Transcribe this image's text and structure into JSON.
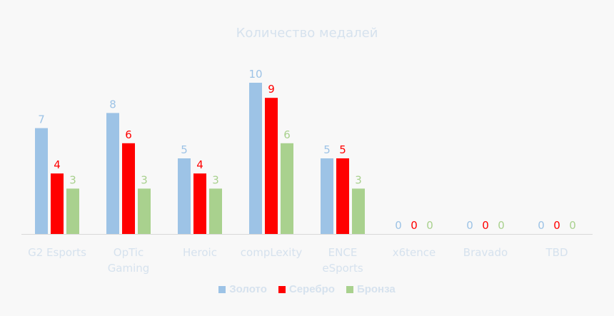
{
  "chart_data": {
    "type": "bar",
    "title": "Количество медалей",
    "categories": [
      "G2 Esports",
      "OpTic Gaming",
      "Heroic",
      "compLexity",
      "ENCE eSports",
      "x6tence",
      "Bravado",
      "TBD"
    ],
    "category_lines": [
      [
        "G2 Esports"
      ],
      [
        "OpTic",
        "Gaming"
      ],
      [
        "Heroic"
      ],
      [
        "compLexity"
      ],
      [
        "ENCE",
        "eSports"
      ],
      [
        "x6tence"
      ],
      [
        "Bravado"
      ],
      [
        "TBD"
      ]
    ],
    "series": [
      {
        "name": "Золото",
        "color": "#9dc3e6",
        "values": [
          7,
          8,
          5,
          10,
          5,
          0,
          0,
          0
        ]
      },
      {
        "name": "Серебро",
        "color": "#ff0000",
        "values": [
          4,
          6,
          4,
          9,
          5,
          0,
          0,
          0
        ]
      },
      {
        "name": "Бронза",
        "color": "#a9d18e",
        "values": [
          3,
          3,
          3,
          6,
          3,
          0,
          0,
          0
        ]
      }
    ],
    "ylim": [
      0,
      10
    ],
    "grid": false,
    "legend_position": "bottom",
    "data_labels": true
  }
}
